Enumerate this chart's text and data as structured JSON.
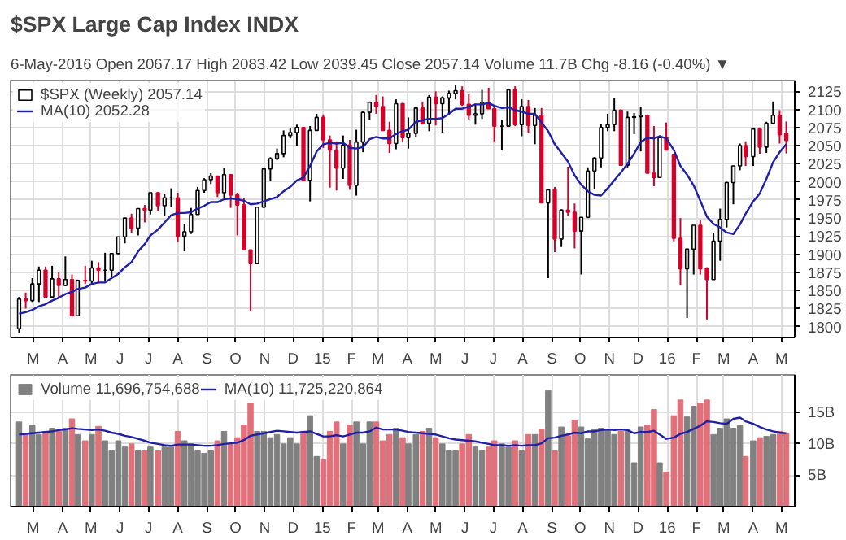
{
  "chart_data": [
    {
      "type": "candlestick",
      "title": "$SPX Large Cap Index INDX",
      "subtitle": "6-May-2016   Open 2067.17  High 2083.42  Low 2039.45  Close 2057.14  Volume 11.7B  Chg -8.16 (-0.40%) ▼",
      "x": [
        "2014-02-14",
        "2014-02-21",
        "2014-02-28",
        "2014-03-07",
        "2014-03-14",
        "2014-03-21",
        "2014-03-28",
        "2014-04-04",
        "2014-04-11",
        "2014-04-17",
        "2014-04-25",
        "2014-05-02",
        "2014-05-09",
        "2014-05-16",
        "2014-05-23",
        "2014-05-30",
        "2014-06-06",
        "2014-06-13",
        "2014-06-20",
        "2014-06-27",
        "2014-07-03",
        "2014-07-11",
        "2014-07-18",
        "2014-07-25",
        "2014-08-01",
        "2014-08-08",
        "2014-08-15",
        "2014-08-22",
        "2014-08-29",
        "2014-09-05",
        "2014-09-12",
        "2014-09-19",
        "2014-09-26",
        "2014-10-03",
        "2014-10-10",
        "2014-10-17",
        "2014-10-24",
        "2014-10-31",
        "2014-11-07",
        "2014-11-14",
        "2014-11-21",
        "2014-11-28",
        "2014-12-05",
        "2014-12-12",
        "2014-12-19",
        "2014-12-26",
        "2015-01-02",
        "2015-01-09",
        "2015-01-16",
        "2015-01-23",
        "2015-01-30",
        "2015-02-06",
        "2015-02-13",
        "2015-02-20",
        "2015-02-27",
        "2015-03-06",
        "2015-03-13",
        "2015-03-20",
        "2015-03-27",
        "2015-04-02",
        "2015-04-10",
        "2015-04-17",
        "2015-04-24",
        "2015-05-01",
        "2015-05-08",
        "2015-05-15",
        "2015-05-22",
        "2015-05-29",
        "2015-06-05",
        "2015-06-12",
        "2015-06-19",
        "2015-06-26",
        "2015-07-02",
        "2015-07-10",
        "2015-07-17",
        "2015-07-24",
        "2015-07-31",
        "2015-08-07",
        "2015-08-14",
        "2015-08-21",
        "2015-08-28",
        "2015-09-04",
        "2015-09-11",
        "2015-09-18",
        "2015-09-25",
        "2015-10-02",
        "2015-10-09",
        "2015-10-16",
        "2015-10-23",
        "2015-10-30",
        "2015-11-06",
        "2015-11-13",
        "2015-11-20",
        "2015-11-27",
        "2015-12-04",
        "2015-12-11",
        "2015-12-18",
        "2015-12-24",
        "2015-12-31",
        "2016-01-08",
        "2016-01-15",
        "2016-01-22",
        "2016-01-29",
        "2016-02-05",
        "2016-02-12",
        "2016-02-19",
        "2016-02-26",
        "2016-03-04",
        "2016-03-11",
        "2016-03-18",
        "2016-03-24",
        "2016-04-01",
        "2016-04-08",
        "2016-04-15",
        "2016-04-22",
        "2016-04-29",
        "2016-05-06"
      ],
      "series": [
        {
          "name": "$SPX (Weekly) 2057.14",
          "ohlc": [
            [
              1797,
              1841,
              1791,
              1838
            ],
            [
              1838,
              1847,
              1825,
              1836
            ],
            [
              1836,
              1867,
              1834,
              1859
            ],
            [
              1859,
              1883,
              1834,
              1878
            ],
            [
              1878,
              1883,
              1839,
              1841
            ],
            [
              1841,
              1884,
              1840,
              1866
            ],
            [
              1866,
              1875,
              1839,
              1857
            ],
            [
              1857,
              1897,
              1856,
              1865
            ],
            [
              1865,
              1872,
              1814,
              1815
            ],
            [
              1815,
              1865,
              1815,
              1864
            ],
            [
              1864,
              1884,
              1859,
              1863
            ],
            [
              1863,
              1891,
              1860,
              1881
            ],
            [
              1881,
              1889,
              1860,
              1878
            ],
            [
              1878,
              1902,
              1862,
              1878
            ],
            [
              1878,
              1901,
              1868,
              1901
            ],
            [
              1901,
              1924,
              1900,
              1924
            ],
            [
              1924,
              1950,
              1915,
              1950
            ],
            [
              1950,
              1956,
              1930,
              1936
            ],
            [
              1936,
              1963,
              1926,
              1963
            ],
            [
              1963,
              1968,
              1944,
              1961
            ],
            [
              1961,
              1985,
              1955,
              1985
            ],
            [
              1985,
              1986,
              1960,
              1967
            ],
            [
              1967,
              1983,
              1953,
              1978
            ],
            [
              1978,
              1991,
              1965,
              1978
            ],
            [
              1978,
              1985,
              1917,
              1925
            ],
            [
              1925,
              1942,
              1904,
              1931
            ],
            [
              1931,
              1964,
              1928,
              1955
            ],
            [
              1955,
              1993,
              1955,
              1988
            ],
            [
              1988,
              2005,
              1985,
              2003
            ],
            [
              2003,
              2012,
              1997,
              2008
            ],
            [
              2008,
              2008,
              1979,
              1985
            ],
            [
              1985,
              2019,
              1978,
              2010
            ],
            [
              2010,
              2010,
              1964,
              1982
            ],
            [
              1982,
              1985,
              1926,
              1968
            ],
            [
              1968,
              1977,
              1906,
              1906
            ],
            [
              1906,
              1906,
              1821,
              1887
            ],
            [
              1887,
              1965,
              1887,
              1965
            ],
            [
              1965,
              2018,
              1964,
              2018
            ],
            [
              2018,
              2034,
              2001,
              2032
            ],
            [
              2032,
              2046,
              2030,
              2039
            ],
            [
              2039,
              2071,
              2034,
              2064
            ],
            [
              2064,
              2075,
              2060,
              2068
            ],
            [
              2068,
              2079,
              2049,
              2075
            ],
            [
              2075,
              2075,
              2002,
              2002
            ],
            [
              2002,
              2077,
              1973,
              2071
            ],
            [
              2071,
              2094,
              2071,
              2089
            ],
            [
              2089,
              2093,
              2047,
              2058
            ],
            [
              2058,
              2064,
              1992,
              2044
            ],
            [
              2044,
              2056,
              1988,
              2019
            ],
            [
              2019,
              2064,
              2004,
              2051
            ],
            [
              2051,
              2058,
              1989,
              1995
            ],
            [
              1995,
              2072,
              1981,
              2055
            ],
            [
              2055,
              2097,
              2041,
              2096
            ],
            [
              2096,
              2111,
              2085,
              2110
            ],
            [
              2110,
              2120,
              2094,
              2104
            ],
            [
              2104,
              2118,
              2071,
              2071
            ],
            [
              2071,
              2083,
              2040,
              2053
            ],
            [
              2053,
              2114,
              2045,
              2108
            ],
            [
              2108,
              2109,
              2056,
              2061
            ],
            [
              2061,
              2089,
              2046,
              2067
            ],
            [
              2067,
              2103,
              2062,
              2102
            ],
            [
              2102,
              2111,
              2079,
              2081
            ],
            [
              2081,
              2120,
              2070,
              2117
            ],
            [
              2117,
              2125,
              2078,
              2108
            ],
            [
              2108,
              2118,
              2068,
              2116
            ],
            [
              2116,
              2126,
              2093,
              2122
            ],
            [
              2122,
              2134,
              2114,
              2126
            ],
            [
              2126,
              2132,
              2105,
              2107
            ],
            [
              2107,
              2121,
              2086,
              2092
            ],
            [
              2092,
              2108,
              2079,
              2094
            ],
            [
              2094,
              2127,
              2087,
              2110
            ],
            [
              2110,
              2130,
              2101,
              2101
            ],
            [
              2101,
              2103,
              2056,
              2077
            ],
            [
              2077,
              2085,
              2044,
              2077
            ],
            [
              2077,
              2128,
              2077,
              2127
            ],
            [
              2127,
              2132,
              2077,
              2079
            ],
            [
              2079,
              2114,
              2063,
              2104
            ],
            [
              2104,
              2113,
              2067,
              2078
            ],
            [
              2078,
              2102,
              2052,
              2092
            ],
            [
              2092,
              2102,
              1971,
              1971
            ],
            [
              1971,
              1989,
              1867,
              1989
            ],
            [
              1989,
              1993,
              1903,
              1921
            ],
            [
              1921,
              1962,
              1910,
              1961
            ],
            [
              1961,
              2021,
              1953,
              1958
            ],
            [
              1958,
              1970,
              1908,
              1932
            ],
            [
              1932,
              1951,
              1872,
              1951
            ],
            [
              1951,
              2020,
              1950,
              2015
            ],
            [
              2015,
              2034,
              1990,
              2033
            ],
            [
              2033,
              2080,
              2020,
              2075
            ],
            [
              2075,
              2094,
              2070,
              2079
            ],
            [
              2079,
              2116,
              2070,
              2099
            ],
            [
              2099,
              2100,
              2022,
              2023
            ],
            [
              2023,
              2097,
              2020,
              2089
            ],
            [
              2089,
              2095,
              2066,
              2090
            ],
            [
              2090,
              2104,
              2042,
              2092
            ],
            [
              2092,
              2093,
              2012,
              2012
            ],
            [
              2012,
              2077,
              1994,
              2006
            ],
            [
              2006,
              2064,
              2006,
              2061
            ],
            [
              2061,
              2082,
              2044,
              2044
            ],
            [
              2038,
              2038,
              1918,
              1922
            ],
            [
              1922,
              1950,
              1857,
              1880
            ],
            [
              1880,
              1908,
              1812,
              1907
            ],
            [
              1907,
              1940,
              1872,
              1940
            ],
            [
              1940,
              1947,
              1872,
              1880
            ],
            [
              1880,
              1882,
              1810,
              1865
            ],
            [
              1865,
              1930,
              1865,
              1918
            ],
            [
              1918,
              1963,
              1891,
              1948
            ],
            [
              1948,
              2000,
              1937,
              1999
            ],
            [
              1999,
              2022,
              1969,
              2022
            ],
            [
              2022,
              2053,
              2016,
              2050
            ],
            [
              2050,
              2056,
              2022,
              2035
            ],
            [
              2035,
              2075,
              2022,
              2073
            ],
            [
              2073,
              2075,
              2039,
              2048
            ],
            [
              2048,
              2083,
              2040,
              2081
            ],
            [
              2081,
              2111,
              2080,
              2092
            ],
            [
              2092,
              2099,
              2053,
              2065
            ],
            [
              2067.17,
              2083.42,
              2039.45,
              2057.14
            ]
          ],
          "colors": [
            "#000000",
            "#d6002a",
            "#000000",
            "#000000",
            "#d6002a",
            "#000000",
            "#d6002a",
            "#000000",
            "#d6002a",
            "#000000",
            "#d6002a",
            "#000000",
            "#d6002a",
            "#000000",
            "#000000",
            "#000000",
            "#000000",
            "#d6002a",
            "#000000",
            "#d6002a",
            "#000000",
            "#d6002a",
            "#000000",
            "#000000",
            "#d6002a",
            "#000000",
            "#000000",
            "#000000",
            "#000000",
            "#000000",
            "#d6002a",
            "#000000",
            "#d6002a",
            "#d6002a",
            "#d6002a",
            "#d6002a",
            "#000000",
            "#000000",
            "#000000",
            "#000000",
            "#000000",
            "#000000",
            "#000000",
            "#d6002a",
            "#000000",
            "#000000",
            "#d6002a",
            "#d6002a",
            "#d6002a",
            "#000000",
            "#d6002a",
            "#000000",
            "#000000",
            "#000000",
            "#d6002a",
            "#d6002a",
            "#d6002a",
            "#000000",
            "#d6002a",
            "#000000",
            "#000000",
            "#d6002a",
            "#000000",
            "#d6002a",
            "#000000",
            "#000000",
            "#000000",
            "#d6002a",
            "#d6002a",
            "#000000",
            "#000000",
            "#d6002a",
            "#d6002a",
            "#000000",
            "#000000",
            "#d6002a",
            "#000000",
            "#d6002a",
            "#000000",
            "#d6002a",
            "#000000",
            "#d6002a",
            "#000000",
            "#d6002a",
            "#d6002a",
            "#000000",
            "#000000",
            "#000000",
            "#000000",
            "#000000",
            "#000000",
            "#d6002a",
            "#000000",
            "#000000",
            "#000000",
            "#d6002a",
            "#d6002a",
            "#000000",
            "#d6002a",
            "#d6002a",
            "#d6002a",
            "#000000",
            "#000000",
            "#d6002a",
            "#d6002a",
            "#000000",
            "#000000",
            "#000000",
            "#000000",
            "#000000",
            "#d6002a",
            "#000000",
            "#d6002a",
            "#000000",
            "#000000",
            "#d6002a",
            "#d6002a"
          ]
        },
        {
          "name": "MA(10) 2052.28",
          "type": "line",
          "color": "#1f1fa8",
          "values": [
            1818,
            1820,
            1823,
            1828,
            1831,
            1836,
            1840,
            1845,
            1848,
            1852,
            1854,
            1859,
            1861,
            1861,
            1867,
            1873,
            1882,
            1889,
            1904,
            1914,
            1926,
            1934,
            1944,
            1954,
            1957,
            1957,
            1958,
            1963,
            1967,
            1972,
            1972,
            1976,
            1977,
            1976,
            1974,
            1969,
            1970,
            1973,
            1976,
            1979,
            1987,
            1993,
            2002,
            2006,
            2022,
            2042,
            2052,
            2054,
            2053,
            2054,
            2047,
            2046,
            2048,
            2059,
            2062,
            2060,
            2060,
            2066,
            2070,
            2072,
            2083,
            2085,
            2087,
            2087,
            2088,
            2094,
            2101,
            2101,
            2104,
            2107,
            2107,
            2109,
            2105,
            2102,
            2103,
            2099,
            2097,
            2094,
            2094,
            2082,
            2070,
            2052,
            2040,
            2028,
            2009,
            1996,
            1987,
            1982,
            1981,
            1991,
            2002,
            2013,
            2025,
            2039,
            2055,
            2061,
            2060,
            2063,
            2060,
            2044,
            2022,
            2010,
            1995,
            1974,
            1952,
            1942,
            1937,
            1930,
            1928,
            1941,
            1956,
            1973,
            1984,
            2004,
            2027,
            2041,
            2052
          ]
        }
      ],
      "xlim": [
        "2014-02-05",
        "2016-05-15"
      ],
      "xticks": [
        {
          "value": "2014-03-01",
          "label": "M"
        },
        {
          "value": "2014-04-01",
          "label": "A"
        },
        {
          "value": "2014-05-01",
          "label": "M"
        },
        {
          "value": "2014-06-01",
          "label": "J"
        },
        {
          "value": "2014-07-01",
          "label": "J"
        },
        {
          "value": "2014-08-01",
          "label": "A"
        },
        {
          "value": "2014-09-01",
          "label": "S"
        },
        {
          "value": "2014-10-01",
          "label": "O"
        },
        {
          "value": "2014-11-01",
          "label": "N"
        },
        {
          "value": "2014-12-01",
          "label": "D"
        },
        {
          "value": "2015-01-01",
          "label": "15"
        },
        {
          "value": "2015-02-01",
          "label": "F"
        },
        {
          "value": "2015-03-01",
          "label": "M"
        },
        {
          "value": "2015-04-01",
          "label": "A"
        },
        {
          "value": "2015-05-01",
          "label": "M"
        },
        {
          "value": "2015-06-01",
          "label": "J"
        },
        {
          "value": "2015-07-01",
          "label": "J"
        },
        {
          "value": "2015-08-01",
          "label": "A"
        },
        {
          "value": "2015-09-01",
          "label": "S"
        },
        {
          "value": "2015-10-01",
          "label": "O"
        },
        {
          "value": "2015-11-01",
          "label": "N"
        },
        {
          "value": "2015-12-01",
          "label": "D"
        },
        {
          "value": "2016-01-01",
          "label": "16"
        },
        {
          "value": "2016-02-01",
          "label": "F"
        },
        {
          "value": "2016-03-01",
          "label": "M"
        },
        {
          "value": "2016-04-01",
          "label": "A"
        },
        {
          "value": "2016-05-01",
          "label": "M"
        }
      ],
      "ylim": [
        1785,
        2140
      ],
      "yticks": [
        1800,
        1825,
        1850,
        1875,
        1900,
        1925,
        1950,
        1975,
        2000,
        2025,
        2050,
        2075,
        2100,
        2125
      ],
      "grid": true,
      "legend": "top left"
    },
    {
      "type": "bar",
      "x": [
        "2014-02-14",
        "2014-02-21",
        "2014-02-28",
        "2014-03-07",
        "2014-03-14",
        "2014-03-21",
        "2014-03-28",
        "2014-04-04",
        "2014-04-11",
        "2014-04-17",
        "2014-04-25",
        "2014-05-02",
        "2014-05-09",
        "2014-05-16",
        "2014-05-23",
        "2014-05-30",
        "2014-06-06",
        "2014-06-13",
        "2014-06-20",
        "2014-06-27",
        "2014-07-03",
        "2014-07-11",
        "2014-07-18",
        "2014-07-25",
        "2014-08-01",
        "2014-08-08",
        "2014-08-15",
        "2014-08-22",
        "2014-08-29",
        "2014-09-05",
        "2014-09-12",
        "2014-09-19",
        "2014-09-26",
        "2014-10-03",
        "2014-10-10",
        "2014-10-17",
        "2014-10-24",
        "2014-10-31",
        "2014-11-07",
        "2014-11-14",
        "2014-11-21",
        "2014-11-28",
        "2014-12-05",
        "2014-12-12",
        "2014-12-19",
        "2014-12-26",
        "2015-01-02",
        "2015-01-09",
        "2015-01-16",
        "2015-01-23",
        "2015-01-30",
        "2015-02-06",
        "2015-02-13",
        "2015-02-20",
        "2015-02-27",
        "2015-03-06",
        "2015-03-13",
        "2015-03-20",
        "2015-03-27",
        "2015-04-02",
        "2015-04-10",
        "2015-04-17",
        "2015-04-24",
        "2015-05-01",
        "2015-05-08",
        "2015-05-15",
        "2015-05-22",
        "2015-05-29",
        "2015-06-05",
        "2015-06-12",
        "2015-06-19",
        "2015-06-26",
        "2015-07-02",
        "2015-07-10",
        "2015-07-17",
        "2015-07-24",
        "2015-07-31",
        "2015-08-07",
        "2015-08-14",
        "2015-08-21",
        "2015-08-28",
        "2015-09-04",
        "2015-09-11",
        "2015-09-18",
        "2015-09-25",
        "2015-10-02",
        "2015-10-09",
        "2015-10-16",
        "2015-10-23",
        "2015-10-30",
        "2015-11-06",
        "2015-11-13",
        "2015-11-20",
        "2015-11-27",
        "2015-12-04",
        "2015-12-11",
        "2015-12-18",
        "2015-12-24",
        "2015-12-31",
        "2016-01-08",
        "2016-01-15",
        "2016-01-22",
        "2016-01-29",
        "2016-02-05",
        "2016-02-12",
        "2016-02-19",
        "2016-02-26",
        "2016-03-04",
        "2016-03-11",
        "2016-03-18",
        "2016-03-24",
        "2016-04-01",
        "2016-04-08",
        "2016-04-15",
        "2016-04-22",
        "2016-04-29",
        "2016-05-06"
      ],
      "series": [
        {
          "name": "Volume 11,696,754,688",
          "values": [
            13.5,
            11.5,
            13,
            11.5,
            12,
            12.5,
            12,
            12.5,
            14,
            11.5,
            10.5,
            11.5,
            12.8,
            10.5,
            9,
            10.5,
            9.5,
            10,
            9,
            9,
            9.5,
            9,
            9.5,
            9.5,
            12,
            10.5,
            10,
            9,
            8.5,
            9,
            10.5,
            12,
            10,
            11,
            13,
            16.5,
            12,
            12,
            11,
            11.5,
            10,
            11,
            10,
            12,
            14.5,
            8,
            7.5,
            12,
            13.5,
            10,
            13,
            13.5,
            10,
            13.5,
            13.5,
            10.5,
            11.5,
            12.5,
            11,
            10,
            11.5,
            12,
            12.5,
            11,
            10,
            9,
            9,
            10,
            11.5,
            9.5,
            9,
            9.5,
            10.5,
            10,
            9.5,
            10.5,
            9,
            11.5,
            11.5,
            12.3,
            18.5,
            9,
            12.7,
            11.3,
            13.8,
            12.7,
            10.8,
            12.3,
            12.5,
            12.2,
            11.5,
            12,
            12.3,
            7,
            12.7,
            13,
            15.5,
            7,
            5.5,
            14.5,
            17,
            14.3,
            16,
            16.5,
            17,
            11.5,
            12.5,
            14,
            12.5,
            13,
            8,
            10.5,
            11,
            11.2,
            11.5,
            12,
            11.7
          ],
          "colors": [
            "#808080",
            "#e0707a",
            "#808080",
            "#808080",
            "#e0707a",
            "#808080",
            "#e0707a",
            "#808080",
            "#e0707a",
            "#808080",
            "#e0707a",
            "#808080",
            "#e0707a",
            "#808080",
            "#808080",
            "#808080",
            "#808080",
            "#e0707a",
            "#808080",
            "#e0707a",
            "#808080",
            "#e0707a",
            "#808080",
            "#808080",
            "#e0707a",
            "#808080",
            "#808080",
            "#808080",
            "#808080",
            "#808080",
            "#e0707a",
            "#808080",
            "#e0707a",
            "#e0707a",
            "#e0707a",
            "#e0707a",
            "#808080",
            "#808080",
            "#808080",
            "#808080",
            "#808080",
            "#808080",
            "#808080",
            "#e0707a",
            "#808080",
            "#808080",
            "#e0707a",
            "#e0707a",
            "#e0707a",
            "#808080",
            "#e0707a",
            "#808080",
            "#808080",
            "#808080",
            "#e0707a",
            "#e0707a",
            "#e0707a",
            "#808080",
            "#e0707a",
            "#808080",
            "#808080",
            "#e0707a",
            "#808080",
            "#e0707a",
            "#808080",
            "#808080",
            "#808080",
            "#e0707a",
            "#e0707a",
            "#808080",
            "#808080",
            "#e0707a",
            "#e0707a",
            "#808080",
            "#808080",
            "#e0707a",
            "#808080",
            "#e0707a",
            "#808080",
            "#e0707a",
            "#808080",
            "#e0707a",
            "#808080",
            "#e0707a",
            "#e0707a",
            "#808080",
            "#808080",
            "#808080",
            "#808080",
            "#808080",
            "#808080",
            "#e0707a",
            "#808080",
            "#808080",
            "#808080",
            "#e0707a",
            "#e0707a",
            "#808080",
            "#e0707a",
            "#e0707a",
            "#e0707a",
            "#808080",
            "#808080",
            "#e0707a",
            "#e0707a",
            "#808080",
            "#808080",
            "#808080",
            "#808080",
            "#808080",
            "#e0707a",
            "#808080",
            "#e0707a",
            "#808080",
            "#808080",
            "#e0707a",
            "#e0707a"
          ]
        },
        {
          "name": "MA(10) 11,725,220,864",
          "type": "line",
          "color": "#1f1fa8",
          "values": [
            11.5,
            11.6,
            11.7,
            11.8,
            11.9,
            12,
            12.2,
            12.3,
            12.5,
            12.4,
            12.3,
            12.2,
            12.3,
            12.1,
            11.8,
            11.6,
            11.3,
            11.1,
            10.8,
            10.5,
            10.2,
            10,
            9.8,
            9.7,
            9.9,
            9.9,
            9.9,
            9.8,
            9.7,
            9.7,
            9.8,
            10,
            10.1,
            10.2,
            10.6,
            11.3,
            11.5,
            11.7,
            11.9,
            12.1,
            12,
            11.9,
            11.8,
            11.9,
            12,
            11.6,
            11.2,
            11.2,
            11.4,
            11.2,
            11.5,
            11.8,
            11.8,
            12,
            12.6,
            12.3,
            12.3,
            12.3,
            12.1,
            11.9,
            11.8,
            11.7,
            11.6,
            11.5,
            11.2,
            10.9,
            10.7,
            10.6,
            10.5,
            10.4,
            10.2,
            10,
            9.8,
            9.8,
            9.7,
            9.8,
            9.7,
            9.8,
            9.8,
            10.1,
            10.9,
            11,
            11.3,
            11.5,
            11.8,
            11.7,
            12,
            12,
            12.2,
            12.3,
            12.2,
            12.3,
            12.2,
            11.7,
            11.9,
            11.9,
            12.1,
            11.5,
            10.8,
            11,
            11.6,
            11.9,
            12.4,
            12.9,
            13.6,
            13.5,
            13.3,
            13.2,
            14,
            14.2,
            13.6,
            13.2,
            12.7,
            12.3,
            12,
            11.8,
            11.7
          ]
        }
      ],
      "xlim": [
        "2014-02-05",
        "2016-05-15"
      ],
      "xticks": [
        {
          "value": "2014-03-01",
          "label": "M"
        },
        {
          "value": "2014-04-01",
          "label": "A"
        },
        {
          "value": "2014-05-01",
          "label": "M"
        },
        {
          "value": "2014-06-01",
          "label": "J"
        },
        {
          "value": "2014-07-01",
          "label": "J"
        },
        {
          "value": "2014-08-01",
          "label": "A"
        },
        {
          "value": "2014-09-01",
          "label": "S"
        },
        {
          "value": "2014-10-01",
          "label": "O"
        },
        {
          "value": "2014-11-01",
          "label": "N"
        },
        {
          "value": "2014-12-01",
          "label": "D"
        },
        {
          "value": "2015-01-01",
          "label": "15"
        },
        {
          "value": "2015-02-01",
          "label": "F"
        },
        {
          "value": "2015-03-01",
          "label": "M"
        },
        {
          "value": "2015-04-01",
          "label": "A"
        },
        {
          "value": "2015-05-01",
          "label": "M"
        },
        {
          "value": "2015-06-01",
          "label": "J"
        },
        {
          "value": "2015-07-01",
          "label": "J"
        },
        {
          "value": "2015-08-01",
          "label": "A"
        },
        {
          "value": "2015-09-01",
          "label": "S"
        },
        {
          "value": "2015-10-01",
          "label": "O"
        },
        {
          "value": "2015-11-01",
          "label": "N"
        },
        {
          "value": "2015-12-01",
          "label": "D"
        },
        {
          "value": "2016-01-01",
          "label": "16"
        },
        {
          "value": "2016-02-01",
          "label": "F"
        },
        {
          "value": "2016-03-01",
          "label": "M"
        },
        {
          "value": "2016-04-01",
          "label": "A"
        },
        {
          "value": "2016-05-01",
          "label": "M"
        }
      ],
      "ylim": [
        0,
        21
      ],
      "yticks": [
        {
          "value": 5,
          "label": "5B"
        },
        {
          "value": 10,
          "label": "10B"
        },
        {
          "value": 15,
          "label": "15B"
        }
      ],
      "grid": true,
      "legend": "top left"
    }
  ]
}
